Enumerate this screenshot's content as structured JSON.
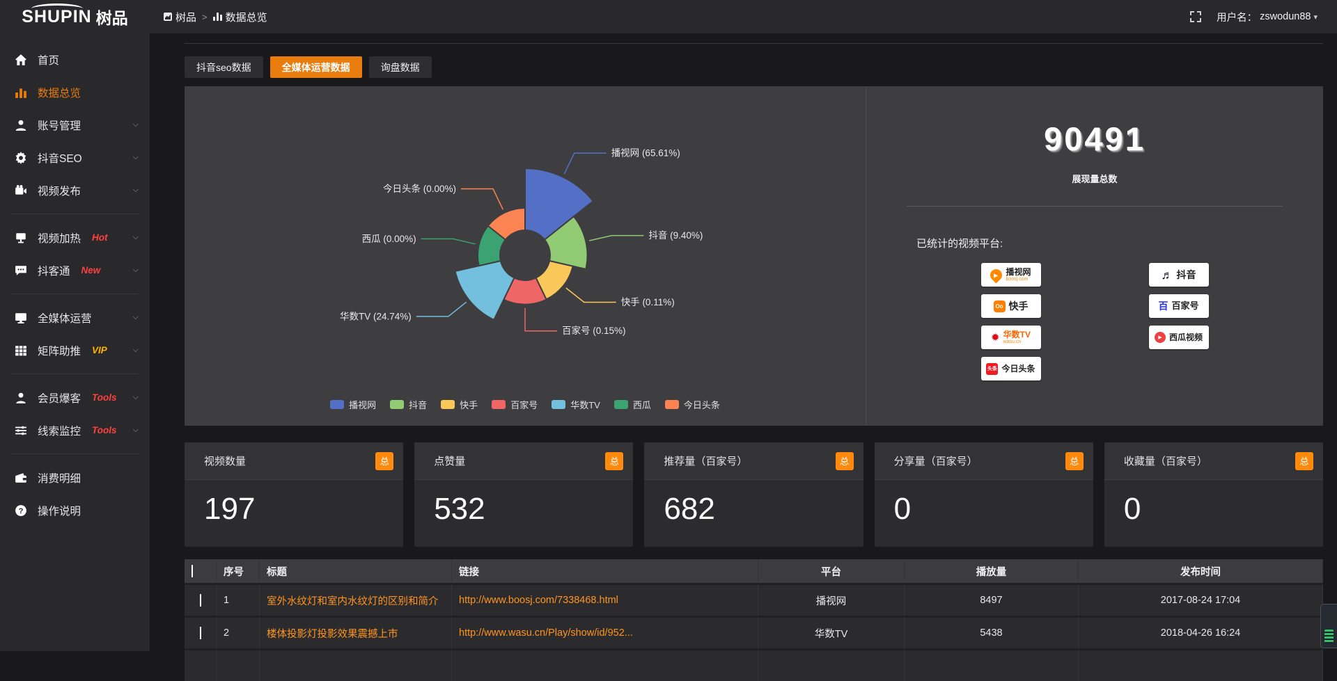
{
  "theme": {
    "accent_orange": "#e87d0e",
    "link_orange": "#ff9420",
    "badge_orange": "#ff8a0e",
    "hot_red": "#ff4040",
    "vip_yellow": "#ffb400"
  },
  "topbar": {
    "logo_en": "SHUPIN",
    "logo_cn": "树品",
    "breadcrumb": {
      "home": "树品",
      "current": "数据总览"
    },
    "username_label": "用户名：",
    "username": "zswodun88"
  },
  "sidebar": {
    "items": [
      {
        "label": "首页"
      },
      {
        "label": "数据总览",
        "active": true
      },
      {
        "label": "账号管理"
      },
      {
        "label": "抖音SEO"
      },
      {
        "label": "视频发布"
      },
      {
        "label": "视频加热",
        "badge": "Hot"
      },
      {
        "label": "抖客通",
        "badge": "New"
      },
      {
        "label": "全媒体运营"
      },
      {
        "label": "矩阵助推",
        "badge": "VIP"
      },
      {
        "label": "会员爆客",
        "badge": "Tools"
      },
      {
        "label": "线索监控",
        "badge": "Tools"
      },
      {
        "label": "消费明细"
      },
      {
        "label": "操作说明"
      }
    ]
  },
  "tabs": [
    {
      "label": "抖音seo数据",
      "active": false
    },
    {
      "label": "全媒体运营数据",
      "active": true
    },
    {
      "label": "询盘数据",
      "active": false
    }
  ],
  "chart_data": {
    "type": "pie",
    "subtype": "nightingale-rose",
    "legend_position": "bottom",
    "label_format": "{name} ({value}%)",
    "items": [
      {
        "name": "播视网",
        "value": 65.61,
        "color": "#5470c6"
      },
      {
        "name": "抖音",
        "value": 9.4,
        "color": "#91cc75"
      },
      {
        "name": "快手",
        "value": 0.11,
        "color": "#fac858"
      },
      {
        "name": "百家号",
        "value": 0.15,
        "color": "#ee6666"
      },
      {
        "name": "华数TV",
        "value": 24.74,
        "color": "#73c0de"
      },
      {
        "name": "西瓜",
        "value": 0.0,
        "color": "#3ba272"
      },
      {
        "name": "今日头条",
        "value": 0.0,
        "color": "#fc8452"
      }
    ]
  },
  "summary": {
    "total": "90491",
    "total_label": "展现量总数",
    "platforms_label": "已统计的视频平台:",
    "platforms": [
      {
        "name": "播视网",
        "sub": "boosj.com"
      },
      {
        "name": "快手"
      },
      {
        "name": "华数TV",
        "sub": "wasu.cn"
      },
      {
        "name": "今日头条",
        "logo_text": "头条"
      },
      {
        "name": "抖音"
      },
      {
        "name": "百家号",
        "logo_text": "百"
      },
      {
        "name": "西瓜视频"
      }
    ]
  },
  "stat_cards": [
    {
      "label": "视频数量",
      "badge": "总",
      "value": "197"
    },
    {
      "label": "点赞量",
      "badge": "总",
      "value": "532"
    },
    {
      "label": "推荐量（百家号）",
      "badge": "总",
      "value": "682"
    },
    {
      "label": "分享量（百家号）",
      "badge": "总",
      "value": "0"
    },
    {
      "label": "收藏量（百家号）",
      "badge": "总",
      "value": "0"
    }
  ],
  "table": {
    "headers": {
      "no": "序号",
      "title": "标题",
      "link": "链接",
      "platform": "平台",
      "plays": "播放量",
      "time": "发布时间"
    },
    "rows": [
      {
        "no": "1",
        "title": "室外水纹灯和室内水纹灯的区别和简介",
        "link": "http://www.boosj.com/7338468.html",
        "platform": "播视网",
        "plays": "8497",
        "time": "2017-08-24 17:04"
      },
      {
        "no": "2",
        "title": "楼体投影灯投影效果震撼上市",
        "link": "http://www.wasu.cn/Play/show/id/952...",
        "platform": "华数TV",
        "plays": "5438",
        "time": "2018-04-26 16:24"
      }
    ]
  }
}
